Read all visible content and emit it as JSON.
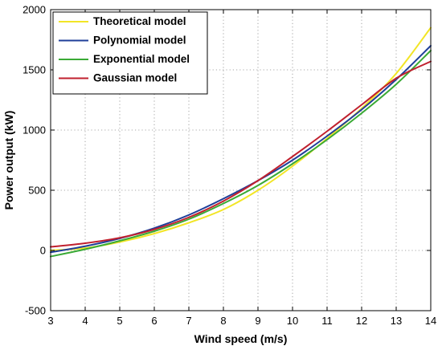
{
  "chart_data": {
    "type": "line",
    "title": "",
    "xlabel": "Wind speed (m/s)",
    "ylabel": "Power output (kW)",
    "xlim": [
      3,
      14
    ],
    "ylim": [
      -500,
      2000
    ],
    "x_ticks": [
      3,
      4,
      5,
      6,
      7,
      8,
      9,
      10,
      11,
      12,
      13,
      14
    ],
    "y_ticks": [
      -500,
      0,
      500,
      1000,
      1500,
      2000
    ],
    "grid": true,
    "legend_position": "top-left",
    "x": [
      3,
      4,
      5,
      6,
      7,
      8,
      9,
      10,
      11,
      12,
      13,
      14
    ],
    "series": [
      {
        "name": "Theoretical model",
        "color": "#f2e526",
        "values": [
          0,
          20,
          70,
          140,
          230,
          340,
          500,
          700,
          930,
          1180,
          1470,
          1850
        ]
      },
      {
        "name": "Polynomial model",
        "color": "#1f3f99",
        "values": [
          -15,
          35,
          100,
          185,
          295,
          430,
          580,
          750,
          950,
          1170,
          1420,
          1700
        ]
      },
      {
        "name": "Exponential model",
        "color": "#3aaa35",
        "values": [
          -50,
          10,
          80,
          160,
          260,
          390,
          540,
          720,
          920,
          1140,
          1380,
          1660
        ]
      },
      {
        "name": "Gaussian model",
        "color": "#c0202e",
        "values": [
          30,
          60,
          105,
          175,
          275,
          410,
          580,
          780,
          990,
          1210,
          1430,
          1570
        ]
      }
    ]
  }
}
